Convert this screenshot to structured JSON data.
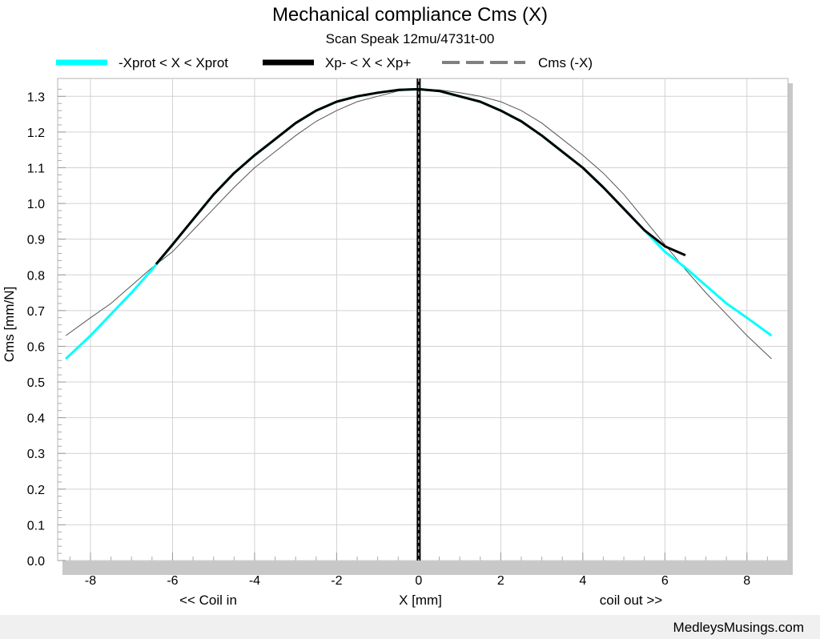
{
  "footer": {
    "site": "MedleysMusings.com"
  },
  "chart_data": {
    "type": "line",
    "title": "Mechanical compliance Cms (X)",
    "subtitle": "Scan Speak 12mu/4731t-00",
    "xlabel": "X [mm]",
    "xlabel_left": "<< Coil in",
    "xlabel_right": "coil out >>",
    "ylabel": "Cms [mm/N]",
    "xlim": [
      -8.8,
      9.0
    ],
    "ylim": [
      0.0,
      1.35
    ],
    "xticks": [
      -8,
      -6,
      -4,
      -2,
      0,
      2,
      4,
      6,
      8
    ],
    "xtick_labels": [
      "-8",
      "-6",
      "-4",
      "-2",
      "0",
      "2",
      "4",
      "6",
      "8"
    ],
    "yticks": [
      0.0,
      0.1,
      0.2,
      0.3,
      0.4,
      0.5,
      0.6,
      0.7,
      0.8,
      0.9,
      1.0,
      1.1,
      1.2,
      1.3
    ],
    "ytick_labels": [
      "0.0",
      "0.1",
      "0.2",
      "0.3",
      "0.4",
      "0.5",
      "0.6",
      "0.7",
      "0.8",
      "0.9",
      "1.0",
      "1.1",
      "1.2",
      "1.3"
    ],
    "grid": true,
    "legend_position": "top",
    "colors": {
      "xprot": "#00ffff",
      "xp": "#000000",
      "mirror": "#808080"
    },
    "series": [
      {
        "name": "-Xprot < X < Xprot",
        "x": [
          -8.6,
          -8.0,
          -7.5,
          -7.0,
          -6.5,
          -6.0,
          -5.5,
          -5.0,
          -4.5,
          -4.0,
          -3.5,
          -3.0,
          -2.5,
          -2.0,
          -1.5,
          -1.0,
          -0.5,
          0.0,
          0.5,
          1.0,
          1.5,
          2.0,
          2.5,
          3.0,
          3.5,
          4.0,
          4.5,
          5.0,
          5.5,
          6.0,
          6.5,
          7.0,
          7.5,
          8.0,
          8.6
        ],
        "y": [
          0.565,
          0.63,
          0.69,
          0.75,
          0.815,
          0.885,
          0.955,
          1.025,
          1.085,
          1.135,
          1.18,
          1.225,
          1.26,
          1.285,
          1.3,
          1.31,
          1.318,
          1.32,
          1.315,
          1.3,
          1.285,
          1.26,
          1.23,
          1.19,
          1.145,
          1.1,
          1.045,
          0.985,
          0.925,
          0.865,
          0.82,
          0.77,
          0.72,
          0.68,
          0.63
        ]
      },
      {
        "name": "Xp- < X < Xp+",
        "x": [
          -6.4,
          -6.0,
          -5.5,
          -5.0,
          -4.5,
          -4.0,
          -3.5,
          -3.0,
          -2.5,
          -2.0,
          -1.5,
          -1.0,
          -0.5,
          0.0,
          0.5,
          1.0,
          1.5,
          2.0,
          2.5,
          3.0,
          3.5,
          4.0,
          4.5,
          5.0,
          5.5,
          6.0,
          6.5
        ],
        "y": [
          0.83,
          0.885,
          0.955,
          1.025,
          1.085,
          1.135,
          1.18,
          1.225,
          1.26,
          1.285,
          1.3,
          1.31,
          1.318,
          1.32,
          1.315,
          1.3,
          1.285,
          1.26,
          1.23,
          1.19,
          1.145,
          1.1,
          1.045,
          0.985,
          0.925,
          0.88,
          0.855
        ]
      },
      {
        "name": "Cms (-X)",
        "x": [
          -8.6,
          -8.0,
          -7.5,
          -7.0,
          -6.5,
          -6.0,
          -5.5,
          -5.0,
          -4.5,
          -4.0,
          -3.5,
          -3.0,
          -2.5,
          -2.0,
          -1.5,
          -1.0,
          -0.5,
          0.0,
          0.5,
          1.0,
          1.5,
          2.0,
          2.5,
          3.0,
          3.5,
          4.0,
          4.5,
          5.0,
          5.5,
          6.0,
          6.5,
          7.0,
          7.5,
          8.0,
          8.6
        ],
        "y": [
          0.63,
          0.68,
          0.72,
          0.77,
          0.82,
          0.865,
          0.925,
          0.985,
          1.045,
          1.1,
          1.145,
          1.19,
          1.23,
          1.26,
          1.285,
          1.3,
          1.315,
          1.32,
          1.318,
          1.31,
          1.3,
          1.285,
          1.26,
          1.225,
          1.18,
          1.135,
          1.085,
          1.025,
          0.955,
          0.885,
          0.815,
          0.75,
          0.69,
          0.63,
          0.565
        ]
      }
    ]
  }
}
